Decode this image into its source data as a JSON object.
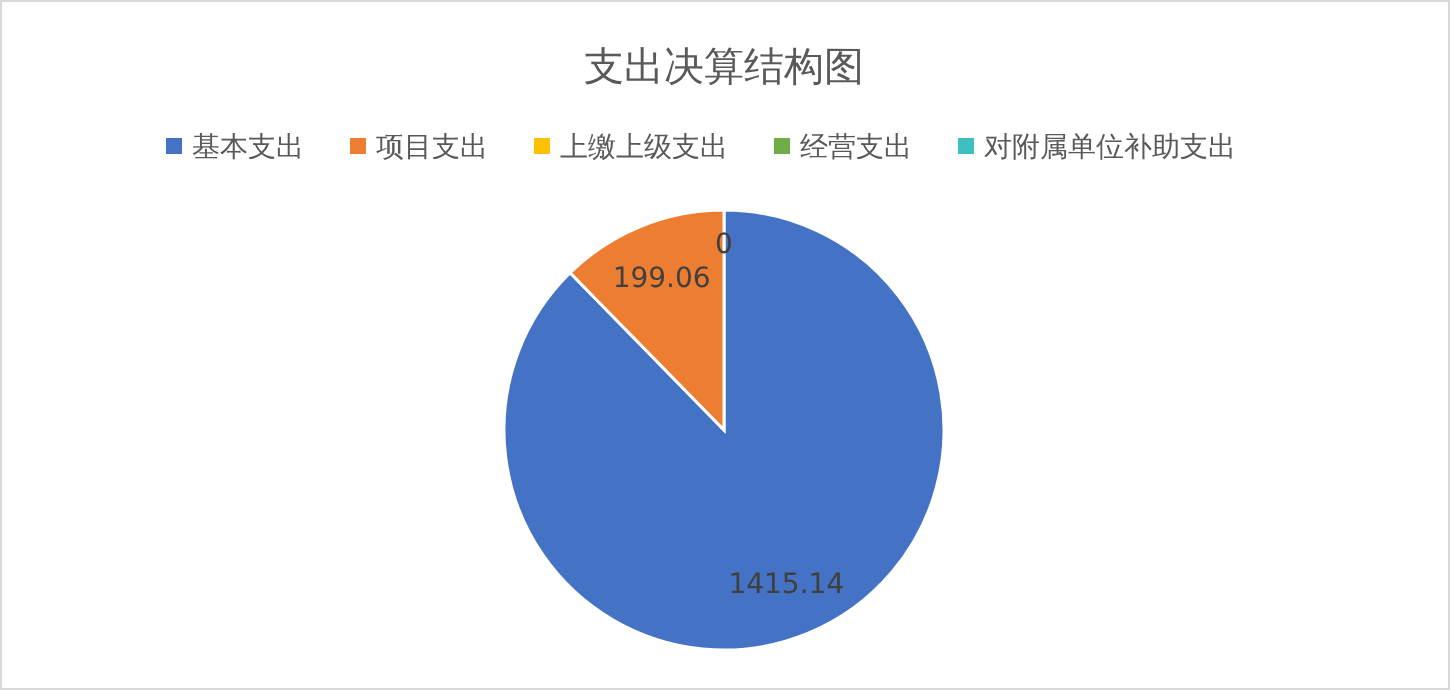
{
  "chart_data": {
    "type": "pie",
    "title": "支出决算结构图",
    "categories": [
      "基本支出",
      "项目支出",
      "上缴上级支出",
      "经营支出",
      "对附属单位补助支出"
    ],
    "values": [
      1415.14,
      199.06,
      0,
      0,
      0
    ],
    "colors": [
      "#4472c4",
      "#ed7d31",
      "#ffc000",
      "#70ad47",
      "#3fbfbf"
    ],
    "value_labels": [
      "1415.14",
      "199.06",
      "0",
      null,
      null
    ],
    "legend": "top"
  }
}
